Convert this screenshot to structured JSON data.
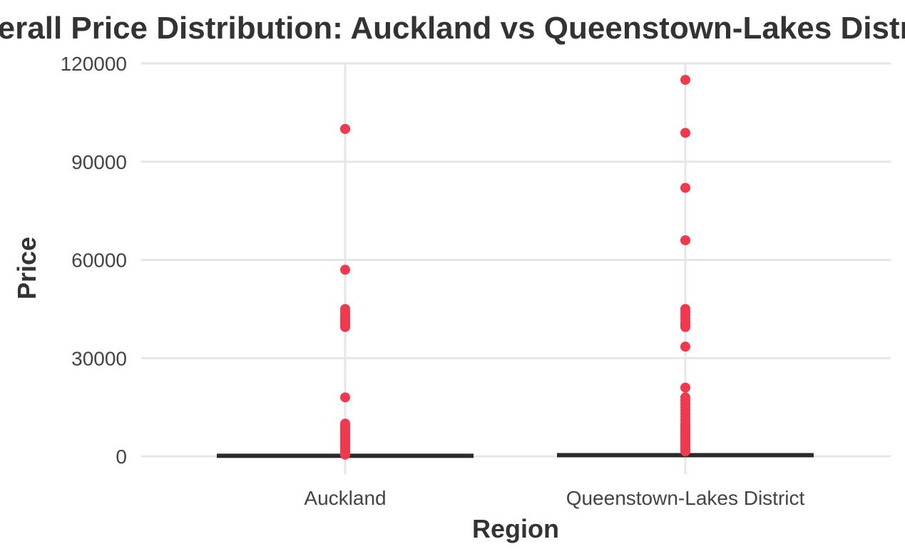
{
  "chart_data": {
    "type": "box",
    "title": "Overall Price Distribution: Auckland vs Queenstown-Lakes District",
    "xlabel": "Region",
    "ylabel": "Price",
    "categories": [
      "Auckland",
      "Queenstown-Lakes District"
    ],
    "ylim": [
      -5000,
      120000
    ],
    "yticks": [
      0,
      30000,
      60000,
      90000,
      120000
    ],
    "y_tick_labels": [
      "0",
      "30000",
      "60000",
      "90000",
      "120000"
    ],
    "grid": true,
    "outlier_color": "#f0394f",
    "box_color": "#2b2b2b",
    "series": [
      {
        "category": "Auckland",
        "median": 150,
        "outliers": [
          100000,
          100000,
          57000,
          45000,
          44000,
          43000,
          42500,
          42000,
          41500,
          41000,
          40500,
          40000,
          39500,
          18000,
          10000,
          9500,
          9000,
          8500,
          8000,
          7500,
          7000,
          6500,
          6000,
          5500,
          5000,
          4500,
          4000,
          3500,
          3000,
          2500,
          2000,
          1500,
          1000,
          500
        ]
      },
      {
        "category": "Queenstown-Lakes District",
        "median": 350,
        "outliers": [
          115000,
          98800,
          82000,
          66000,
          45000,
          44000,
          43000,
          42000,
          41000,
          40500,
          40000,
          39500,
          33500,
          21000,
          18000,
          17000,
          16000,
          15000,
          14000,
          13000,
          12000,
          11000,
          10000,
          9500,
          9000,
          8500,
          8000,
          7500,
          7000,
          6500,
          6000,
          5500,
          5000,
          4500,
          4000,
          3500,
          3000,
          2500,
          2000,
          1500
        ]
      }
    ]
  }
}
